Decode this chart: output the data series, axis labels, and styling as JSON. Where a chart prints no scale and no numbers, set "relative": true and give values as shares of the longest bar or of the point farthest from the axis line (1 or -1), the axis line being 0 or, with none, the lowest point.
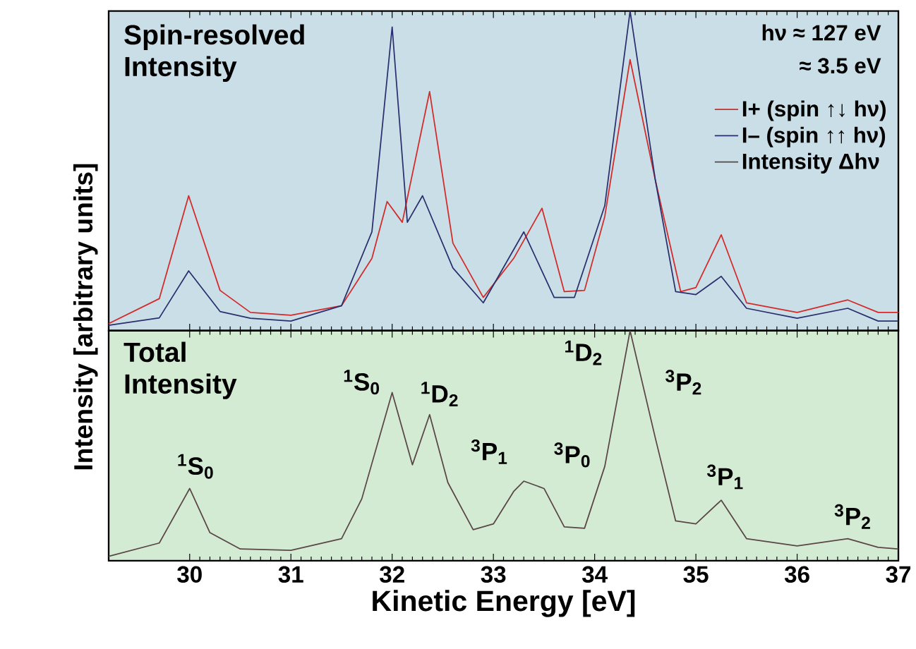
{
  "chart_data": [
    {
      "type": "line",
      "title": "Spin-resolved Intensity",
      "relative": true,
      "xlim": [
        29.2,
        37
      ],
      "xticks": [
        30,
        31,
        32,
        33,
        34,
        35,
        36,
        37
      ],
      "tick_labels": false,
      "legend": "top right",
      "annotations": [
        "hν ≈ 127 eV",
        "≈ 3.5 eV"
      ],
      "series": [
        {
          "name": "I+ (spin ↑↓ hν)",
          "color": "#d42a2a",
          "x": [
            29.2,
            29.7,
            29.99,
            30.3,
            30.6,
            31.0,
            31.5,
            31.8,
            31.95,
            32.1,
            32.37,
            32.6,
            32.9,
            33.2,
            33.48,
            33.7,
            33.9,
            34.1,
            34.35,
            34.6,
            34.85,
            35.0,
            35.25,
            35.5,
            36.0,
            36.5,
            36.8,
            37.0
          ],
          "values": [
            0.022,
            0.1,
            0.422,
            0.126,
            0.057,
            0.048,
            0.078,
            0.226,
            0.404,
            0.339,
            0.748,
            0.274,
            0.104,
            0.226,
            0.383,
            0.122,
            0.126,
            0.357,
            0.848,
            0.47,
            0.122,
            0.135,
            0.3,
            0.087,
            0.057,
            0.096,
            0.057,
            0.057
          ]
        },
        {
          "name": "I– (spin ↑↑ hν)",
          "color": "#2b2f6e",
          "x": [
            29.2,
            29.7,
            29.99,
            30.3,
            30.6,
            31.0,
            31.5,
            31.8,
            32.0,
            32.15,
            32.3,
            32.6,
            32.9,
            33.3,
            33.6,
            33.8,
            34.1,
            34.35,
            34.6,
            34.8,
            35.0,
            35.25,
            35.5,
            36.0,
            36.5,
            36.8,
            37.0
          ],
          "values": [
            0.017,
            0.04,
            0.187,
            0.06,
            0.039,
            0.03,
            0.078,
            0.309,
            0.95,
            0.339,
            0.422,
            0.196,
            0.087,
            0.309,
            0.104,
            0.104,
            0.391,
            1.0,
            0.47,
            0.122,
            0.113,
            0.17,
            0.07,
            0.039,
            0.07,
            0.03,
            0.03
          ]
        }
      ]
    },
    {
      "type": "line",
      "title": "Total Intensity",
      "relative": true,
      "xlabel": "Kinetic Energy [eV]",
      "ylabel": "Intensity [arbitrary units]",
      "xlim": [
        29.2,
        37
      ],
      "xticks": [
        30,
        31,
        32,
        33,
        34,
        35,
        36,
        37
      ],
      "tick_labels": "x",
      "annotations": [
        "$^{1}$S$_{0}$",
        "$^{1}$S$_{0}$",
        "$^{1}$D$_{2}$",
        "$^{3}$P$_{1}$",
        "$^{3}$P$_{0}$",
        "$^{1}$D$_{2}$",
        "$^{3}$P$_{2}$",
        "$^{3}$P$_{1}$",
        "$^{3}$P$_{2}$"
      ],
      "series": [
        {
          "name": "Intensity Δhν",
          "color": "#5a4646",
          "x": [
            29.2,
            29.7,
            30.0,
            30.2,
            30.5,
            31.0,
            31.5,
            31.7,
            32.0,
            32.2,
            32.37,
            32.55,
            32.8,
            33.0,
            33.2,
            33.3,
            33.5,
            33.7,
            33.9,
            34.1,
            34.35,
            34.6,
            34.8,
            35.0,
            35.25,
            35.5,
            36.0,
            36.5,
            36.8,
            37.0
          ],
          "values": [
            0.019,
            0.077,
            0.314,
            0.122,
            0.051,
            0.045,
            0.096,
            0.269,
            0.731,
            0.417,
            0.635,
            0.34,
            0.135,
            0.16,
            0.301,
            0.346,
            0.314,
            0.147,
            0.141,
            0.41,
            1.0,
            0.532,
            0.173,
            0.16,
            0.263,
            0.096,
            0.064,
            0.096,
            0.058,
            0.051
          ]
        }
      ]
    }
  ]
}
